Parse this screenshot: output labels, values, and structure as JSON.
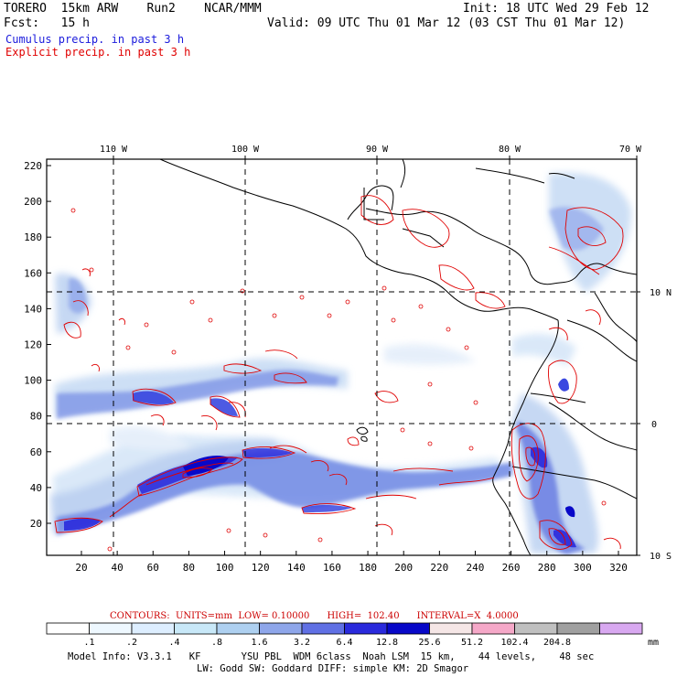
{
  "header": {
    "line1_left": "TORERO  15km ARW    Run2    NCAR/MMM",
    "line1_right": "Init: 18 UTC Wed 29 Feb 12",
    "line2_left": "Fcst:   15 h",
    "line2_right": "Valid: 09 UTC Thu 01 Mar 12 (03 CST Thu 01 Mar 12)",
    "field1": "Cumulus precip. in past 3 h",
    "field2": "Explicit precip. in past 3 h"
  },
  "map": {
    "top_lon_labels": [
      "110 W",
      "100 W",
      "90 W",
      "80 W",
      "70 W"
    ],
    "right_lat_labels": [
      "10 N",
      "0",
      "10 S"
    ],
    "left_axis_ticks": [
      "220",
      "200",
      "180",
      "160",
      "140",
      "120",
      "100",
      "80",
      "60",
      "40",
      "20"
    ],
    "bottom_axis_ticks": [
      "20",
      "40",
      "60",
      "80",
      "100",
      "120",
      "140",
      "160",
      "180",
      "200",
      "220",
      "240",
      "260",
      "280",
      "300",
      "320"
    ],
    "colors": {
      "contour": "#e00000",
      "coast": "#000000",
      "grid": "#000000"
    }
  },
  "legend": {
    "contour_info": "CONTOURS:  UNITS=mm  LOW= 0.10000      HIGH=  102.40      INTERVAL=X  4.0000",
    "units": "mm",
    "labels": [
      ".1",
      ".2",
      ".4",
      ".8",
      "1.6",
      "3.2",
      "6.4",
      "12.8",
      "25.6",
      "51.2",
      "102.4",
      "204.8"
    ],
    "colors": [
      "#ffffff",
      "#eef8ff",
      "#ddeeff",
      "#c8e8f8",
      "#aed0f0",
      "#8ea6ea",
      "#6070e4",
      "#2a2adc",
      "#0808c8",
      "#f5e6e6",
      "#f5a8c8",
      "#c0c0c0",
      "#a0a0a0",
      "#d8a8f0"
    ]
  },
  "footer": {
    "line1": "Model Info: V3.3.1   KF       YSU PBL  WDM 6class  Noah LSM  15 km,    44 levels,    48 sec",
    "line2": "LW: Godd SW: Goddard DIFF: simple KM: 2D Smagor"
  }
}
